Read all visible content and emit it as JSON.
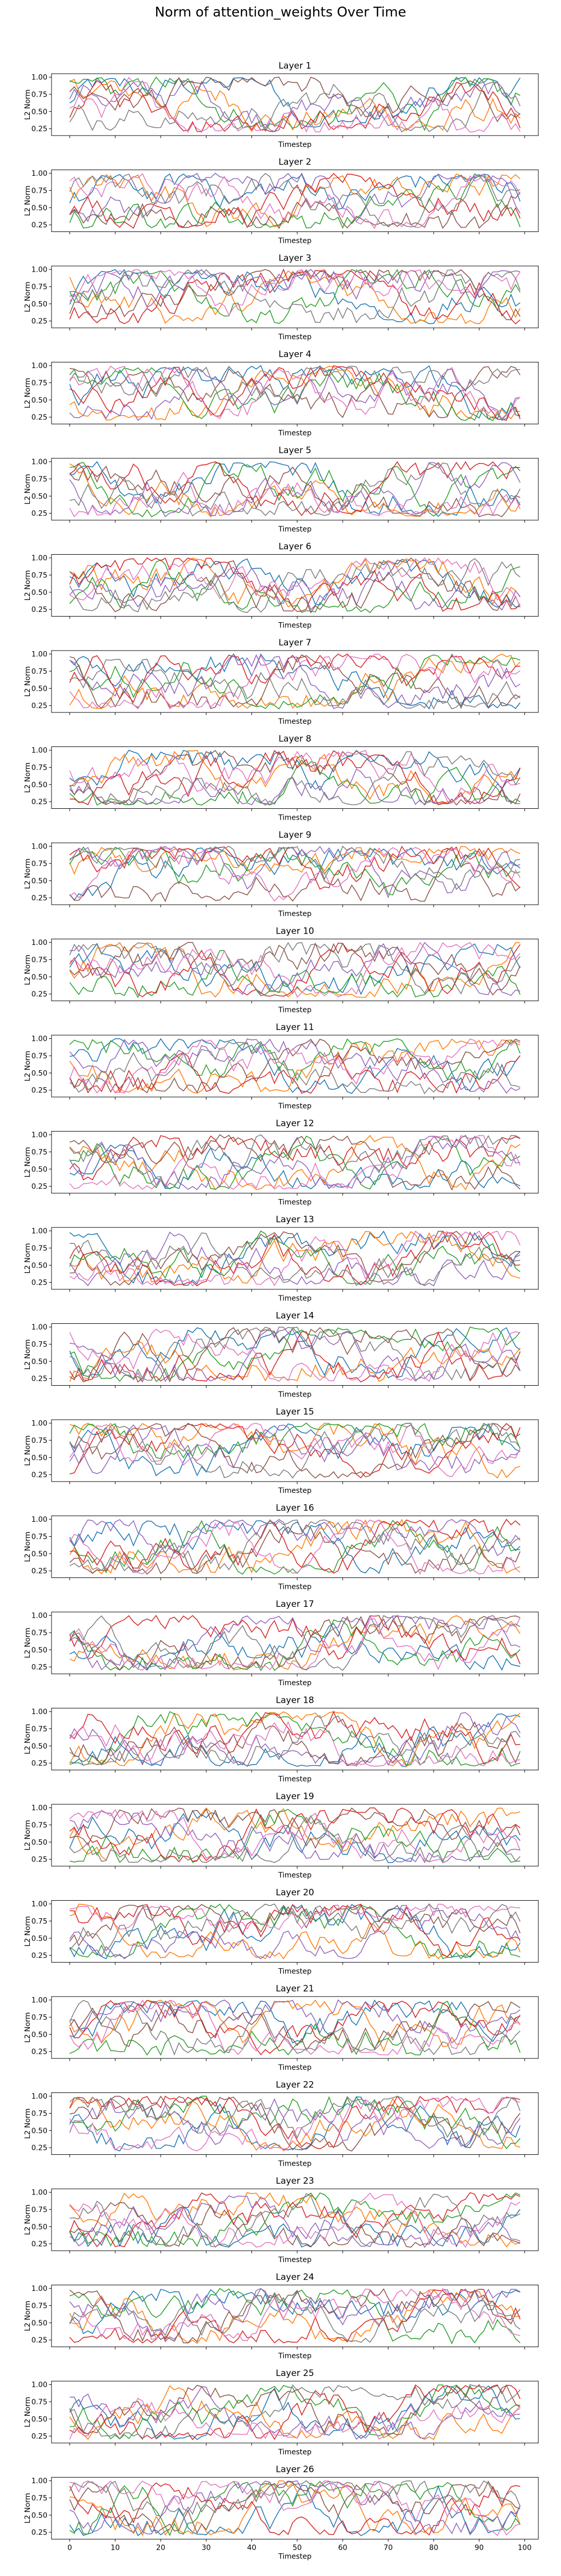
{
  "figure": {
    "title": "Norm of attention_weights Over Time"
  },
  "chart_data": {
    "type": "line",
    "title": "Norm of attention_weights Over Time",
    "panel_count": 26,
    "panel_titles": [
      "Layer 1",
      "Layer 2",
      "Layer 3",
      "Layer 4",
      "Layer 5",
      "Layer 6",
      "Layer 7",
      "Layer 8",
      "Layer 9",
      "Layer 10",
      "Layer 11",
      "Layer 12",
      "Layer 13",
      "Layer 14",
      "Layer 15",
      "Layer 16",
      "Layer 17",
      "Layer 18",
      "Layer 19",
      "Layer 20",
      "Layer 21",
      "Layer 22",
      "Layer 23",
      "Layer 24",
      "Layer 25",
      "Layer 26"
    ],
    "xlabel": "Timestep",
    "ylabel": "L2 Norm",
    "xlim": [
      0,
      99
    ],
    "ylim": [
      0.15,
      1.05
    ],
    "xticks": [
      0,
      10,
      20,
      30,
      40,
      50,
      60,
      70,
      80,
      90,
      100
    ],
    "yticks": [
      0.25,
      0.5,
      0.75,
      1.0
    ],
    "ytick_labels": [
      "0.25",
      "0.50",
      "0.75",
      "1.00"
    ],
    "x_tick_labels_only_on_last_panel": true,
    "grid": false,
    "legend": "none",
    "series_per_panel": 8,
    "series_colors": [
      "#1f77b4",
      "#ff7f0e",
      "#2ca02c",
      "#d62728",
      "#9467bd",
      "#8c564b",
      "#e377c2",
      "#7f7f7f"
    ],
    "note_values": "Each panel shows 8 noisy series over timesteps 0–99 with values between about 0.2 and 1.0; individual points are too dense to read exactly."
  }
}
